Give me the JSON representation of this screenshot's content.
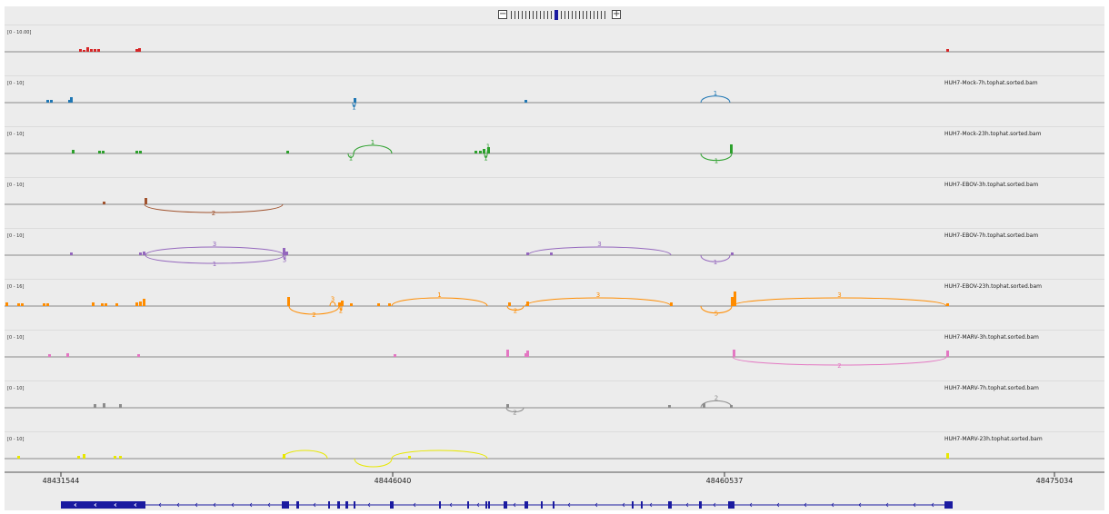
{
  "colors": {
    "bg": "#ececec",
    "baseline": "#8a8a8a",
    "gene": "#1a1aa0",
    "red": "#d62728",
    "blue": "#1f77b4",
    "green": "#2ca02c",
    "brown": "#a0522d",
    "purple": "#9467bd",
    "orange": "#ff8c00",
    "pink": "#e377c2",
    "gray": "#8c8c8c",
    "yellow": "#e8e800"
  },
  "zoom": {
    "minus_icon": "minus-icon",
    "plus_icon": "plus-icon",
    "tick_count": 26,
    "selected_index": 12
  },
  "tracks": [
    {
      "range": "[0 - 10.00]",
      "name": "",
      "color": "#d62728",
      "bars": [
        [
          82,
          3
        ],
        [
          86,
          2
        ],
        [
          90,
          5
        ],
        [
          94,
          3
        ],
        [
          98,
          3
        ],
        [
          102,
          3
        ],
        [
          144,
          3
        ],
        [
          147,
          4
        ],
        [
          1036,
          3
        ]
      ],
      "arcs": []
    },
    {
      "range": "[0 - 10]",
      "name": "HUH7-Mock-7h.tophat.sorted.bam",
      "color": "#1f77b4",
      "bars": [
        [
          46,
          3
        ],
        [
          50,
          3
        ],
        [
          70,
          3
        ],
        [
          72,
          6
        ],
        [
          384,
          5
        ],
        [
          572,
          3
        ]
      ],
      "arcs": [
        [
          383,
          386,
          "below",
          "1"
        ],
        [
          766,
          798,
          "above",
          "1"
        ]
      ]
    },
    {
      "range": "[0 - 10]",
      "name": "HUH7-Mock-23h.tophat.sorted.bam",
      "color": "#2ca02c",
      "bars": [
        [
          74,
          4
        ],
        [
          103,
          3
        ],
        [
          107,
          3
        ],
        [
          144,
          3
        ],
        [
          148,
          3
        ],
        [
          310,
          3
        ],
        [
          517,
          3
        ],
        [
          522,
          3
        ],
        [
          526,
          5
        ],
        [
          531,
          7
        ],
        [
          798,
          10
        ]
      ],
      "arcs": [
        [
          378,
          384,
          "below",
          "1"
        ],
        [
          384,
          426,
          "above",
          "1"
        ],
        [
          528,
          531,
          "below",
          "1"
        ],
        [
          531,
          533,
          "above",
          "1"
        ],
        [
          766,
          800,
          "below",
          "1"
        ]
      ]
    },
    {
      "range": "[0 - 10]",
      "name": "HUH7-EBOV-3h.tophat.sorted.bam",
      "color": "#a0522d",
      "bars": [
        [
          108,
          3
        ],
        [
          154,
          7
        ]
      ],
      "arcs": [
        [
          154,
          306,
          "below",
          "2"
        ]
      ]
    },
    {
      "range": "[0 - 10]",
      "name": "HUH7-EBOV-7h.tophat.sorted.bam",
      "color": "#9467bd",
      "bars": [
        [
          72,
          3
        ],
        [
          148,
          3
        ],
        [
          152,
          4
        ],
        [
          306,
          8
        ],
        [
          309,
          4
        ],
        [
          574,
          3
        ],
        [
          600,
          3
        ],
        [
          799,
          3
        ]
      ],
      "arcs": [
        [
          155,
          307,
          "above",
          "3"
        ],
        [
          155,
          307,
          "below",
          "1"
        ],
        [
          307,
          309,
          "below",
          "3"
        ],
        [
          576,
          733,
          "above",
          "3"
        ],
        [
          766,
          798,
          "below",
          "1"
        ]
      ]
    },
    {
      "range": "[0 - 16]",
      "name": "HUH7-EBOV-23h.tophat.sorted.bam",
      "color": "#ff8c00",
      "bars": [
        [
          1,
          4
        ],
        [
          14,
          3
        ],
        [
          18,
          3
        ],
        [
          42,
          3
        ],
        [
          46,
          3
        ],
        [
          96,
          4
        ],
        [
          106,
          3
        ],
        [
          110,
          3
        ],
        [
          122,
          3
        ],
        [
          144,
          4
        ],
        [
          148,
          5
        ],
        [
          152,
          8
        ],
        [
          311,
          10
        ],
        [
          367,
          4
        ],
        [
          370,
          6
        ],
        [
          380,
          3
        ],
        [
          410,
          3
        ],
        [
          422,
          3
        ],
        [
          554,
          4
        ],
        [
          574,
          5
        ],
        [
          732,
          4
        ],
        [
          799,
          10
        ],
        [
          802,
          16
        ],
        [
          1036,
          3
        ]
      ],
      "arcs": [
        [
          313,
          368,
          "below",
          "2"
        ],
        [
          358,
          364,
          "above",
          "3"
        ],
        [
          369,
          371,
          "below",
          "2"
        ],
        [
          426,
          531,
          "above",
          "1"
        ],
        [
          553,
          571,
          "below",
          "2"
        ],
        [
          573,
          733,
          "above",
          "3"
        ],
        [
          766,
          800,
          "below",
          "5"
        ],
        [
          801,
          1036,
          "above",
          "3"
        ]
      ]
    },
    {
      "range": "[0 - 10]",
      "name": "HUH7-MARV-3h.tophat.sorted.bam",
      "color": "#e377c2",
      "bars": [
        [
          48,
          3
        ],
        [
          68,
          4
        ],
        [
          146,
          3
        ],
        [
          428,
          3
        ],
        [
          552,
          8
        ],
        [
          572,
          4
        ],
        [
          574,
          7
        ],
        [
          801,
          8
        ],
        [
          1036,
          7
        ]
      ],
      "arcs": [
        [
          801,
          1036,
          "below",
          "2"
        ]
      ]
    },
    {
      "range": "[0 - 10]",
      "name": "HUH7-MARV-7h.tophat.sorted.bam",
      "color": "#8c8c8c",
      "bars": [
        [
          98,
          4
        ],
        [
          108,
          5
        ],
        [
          126,
          4
        ],
        [
          552,
          4
        ],
        [
          730,
          3
        ],
        [
          768,
          5
        ],
        [
          798,
          3
        ]
      ],
      "arcs": [
        [
          552,
          571,
          "below",
          "2"
        ],
        [
          766,
          800,
          "above",
          "2"
        ]
      ]
    },
    {
      "range": "[0 - 10]",
      "name": "HUH7-MARV-23h.tophat.sorted.bam",
      "color": "#e8e800",
      "bars": [
        [
          14,
          3
        ],
        [
          80,
          3
        ],
        [
          86,
          5
        ],
        [
          120,
          3
        ],
        [
          126,
          3
        ],
        [
          306,
          5
        ],
        [
          444,
          3
        ],
        [
          1036,
          6
        ]
      ],
      "arcs": [
        [
          306,
          355,
          "above",
          ""
        ],
        [
          385,
          426,
          "below",
          ""
        ],
        [
          426,
          531,
          "above",
          ""
        ]
      ]
    }
  ],
  "ruler": [
    {
      "label": "48431544",
      "x": 62
    },
    {
      "label": "48446040",
      "x": 427
    },
    {
      "label": "48460537",
      "x": 792
    },
    {
      "label": "48475034",
      "x": 1155
    }
  ],
  "gene": {
    "utr": [
      [
        62,
        155
      ]
    ],
    "exons": [
      [
        305,
        313
      ],
      [
        321,
        324
      ],
      [
        356,
        358
      ],
      [
        366,
        369
      ],
      [
        375,
        378
      ],
      [
        384,
        386
      ],
      [
        424,
        428
      ],
      [
        478,
        480
      ],
      [
        509,
        511
      ],
      [
        529,
        531
      ],
      [
        532,
        534
      ],
      [
        549,
        553
      ],
      [
        572,
        576
      ],
      [
        590,
        592
      ],
      [
        603,
        605
      ],
      [
        690,
        692
      ],
      [
        700,
        702
      ],
      [
        730,
        734
      ],
      [
        764,
        767
      ],
      [
        796,
        803
      ],
      [
        1034,
        1043
      ]
    ],
    "arrows_xs": [
      75,
      95,
      115,
      140,
      170,
      190,
      210,
      230,
      250,
      270,
      290,
      340,
      400,
      450,
      490,
      520,
      560,
      620,
      650,
      680,
      710,
      750,
      780,
      820,
      850,
      880,
      910,
      940,
      970,
      1000,
      1020
    ]
  }
}
